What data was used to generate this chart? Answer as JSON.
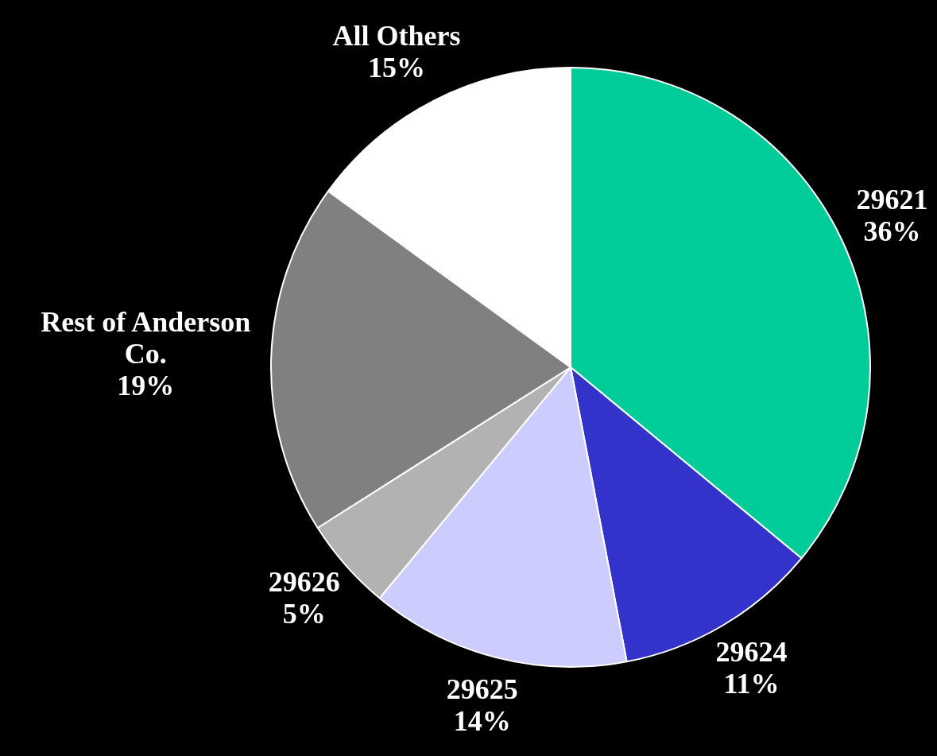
{
  "chart_data": {
    "type": "pie",
    "categories": [
      "29621",
      "29624",
      "29625",
      "29626",
      "Rest of Anderson Co.",
      "All Others"
    ],
    "values": [
      36,
      11,
      14,
      5,
      19,
      15
    ],
    "value_labels": [
      "36%",
      "11%",
      "14%",
      "5%",
      "19%",
      "15%"
    ],
    "colors": [
      "#00cc99",
      "#3333cc",
      "#ccccff",
      "#b2b2b2",
      "#808080",
      "#ffffff"
    ]
  }
}
